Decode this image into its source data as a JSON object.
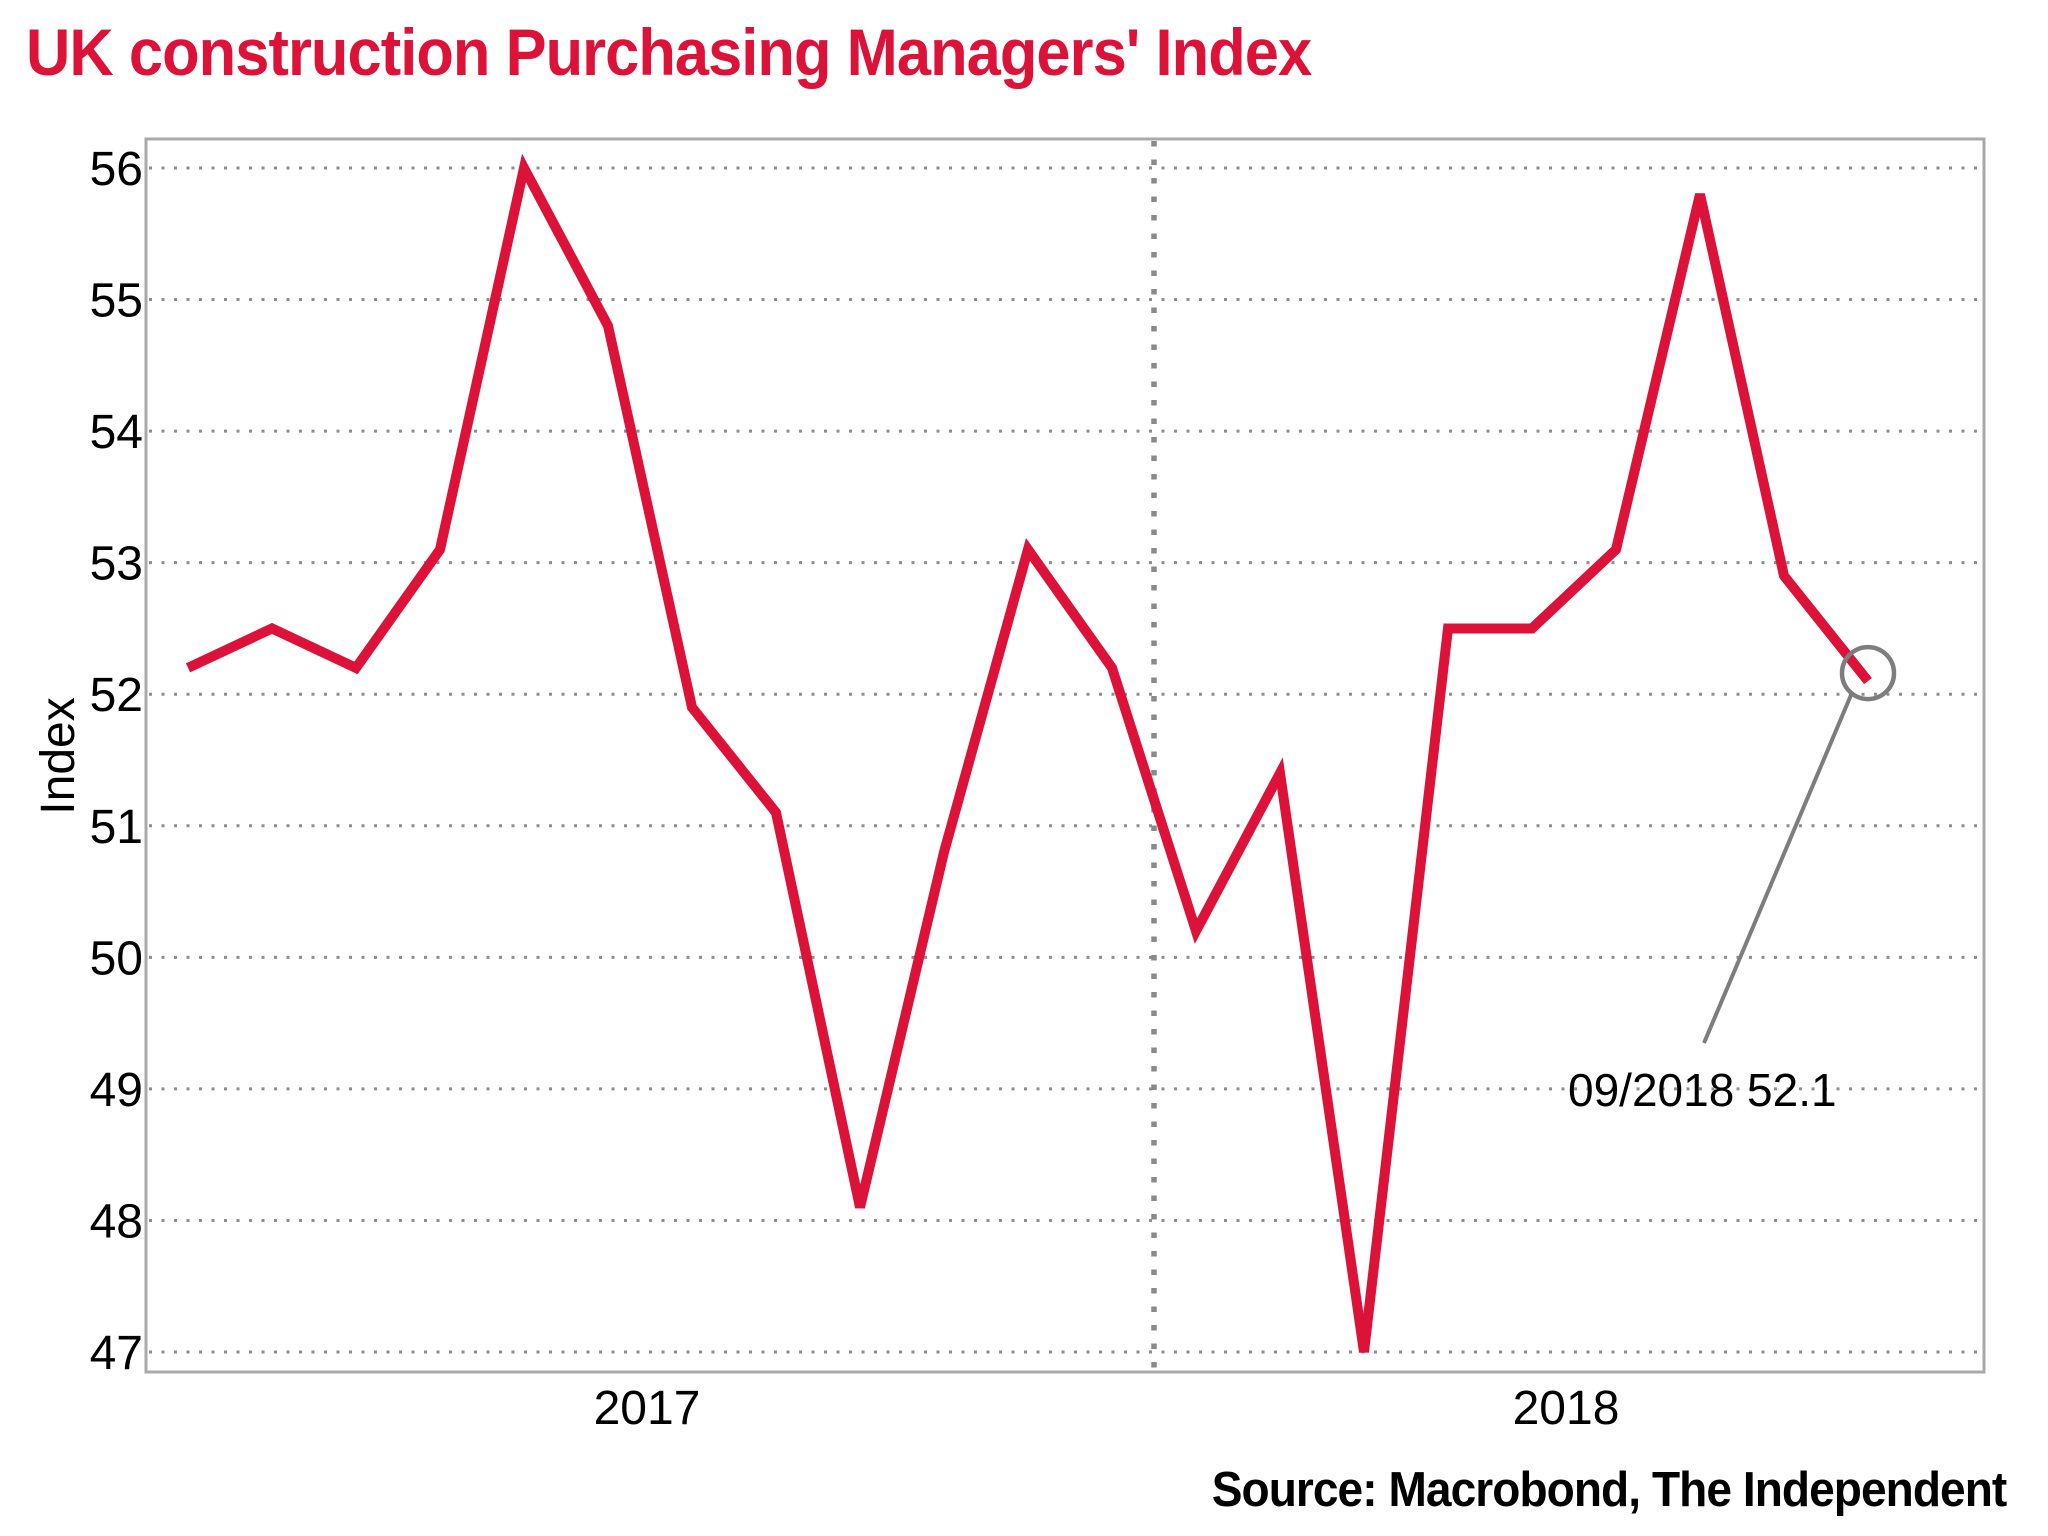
{
  "title": "UK construction Purchasing Managers' Index",
  "source_credit": "Source: Macrobond, The Independent",
  "colors": {
    "accent_red": "#dc1238",
    "grid_gray": "#8e8e8e",
    "border_gray": "#a9a9a9",
    "divider_gray": "#8a8a8a",
    "marker_gray": "#7d7d7d",
    "text_black": "#000000"
  },
  "chart_data": {
    "type": "line",
    "title": "UK construction Purchasing Managers' Index",
    "ylabel": "Index",
    "ylim": [
      47,
      56
    ],
    "yticks": [
      47,
      48,
      49,
      50,
      51,
      52,
      53,
      54,
      55,
      56
    ],
    "grid": "dotted horizontal line at each integer tick; dotted vertical divider between years",
    "legend_position": "none",
    "x_year_labels": [
      "2017",
      "2018"
    ],
    "x": [
      "2017-01",
      "2017-02",
      "2017-03",
      "2017-04",
      "2017-05",
      "2017-06",
      "2017-07",
      "2017-08",
      "2017-09",
      "2017-10",
      "2017-11",
      "2017-12",
      "2018-01",
      "2018-02",
      "2018-03",
      "2018-04",
      "2018-05",
      "2018-06",
      "2018-07",
      "2018-08",
      "2018-09"
    ],
    "series": [
      {
        "name": "UK construction Purchasing Managers' Index",
        "values": [
          52.2,
          52.5,
          52.2,
          53.1,
          56.0,
          54.8,
          51.9,
          51.1,
          48.1,
          50.8,
          53.1,
          52.2,
          50.2,
          51.4,
          47.0,
          52.5,
          52.5,
          53.1,
          55.8,
          52.9,
          52.1
        ]
      }
    ],
    "year_divider_between": [
      "2017-12",
      "2018-01"
    ],
    "last_point_annotation": "09/2018 52.1"
  }
}
